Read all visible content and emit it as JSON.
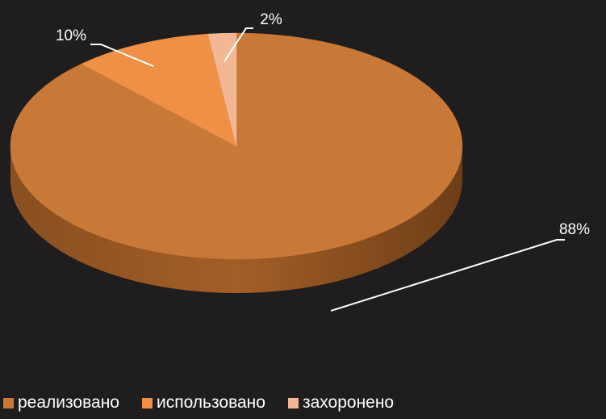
{
  "chart_data": {
    "type": "pie",
    "title": "",
    "series": [
      {
        "slices": [
          {
            "name": "реализовано",
            "value": 88,
            "label": "88%",
            "color": "#c87837"
          },
          {
            "name": "использовано",
            "value": 10,
            "label": "10%",
            "color": "#ef9046"
          },
          {
            "name": "захоронено",
            "value": 2,
            "label": "2%",
            "color": "#f2b896"
          }
        ]
      }
    ],
    "three_d": true,
    "legend": "bottom",
    "background": "#1f1d1e"
  },
  "legend": {
    "items": [
      {
        "label": "реализовано",
        "color": "#c87837"
      },
      {
        "label": "использовано",
        "color": "#ef9046"
      },
      {
        "label": "захоронено",
        "color": "#f2b896"
      }
    ]
  }
}
